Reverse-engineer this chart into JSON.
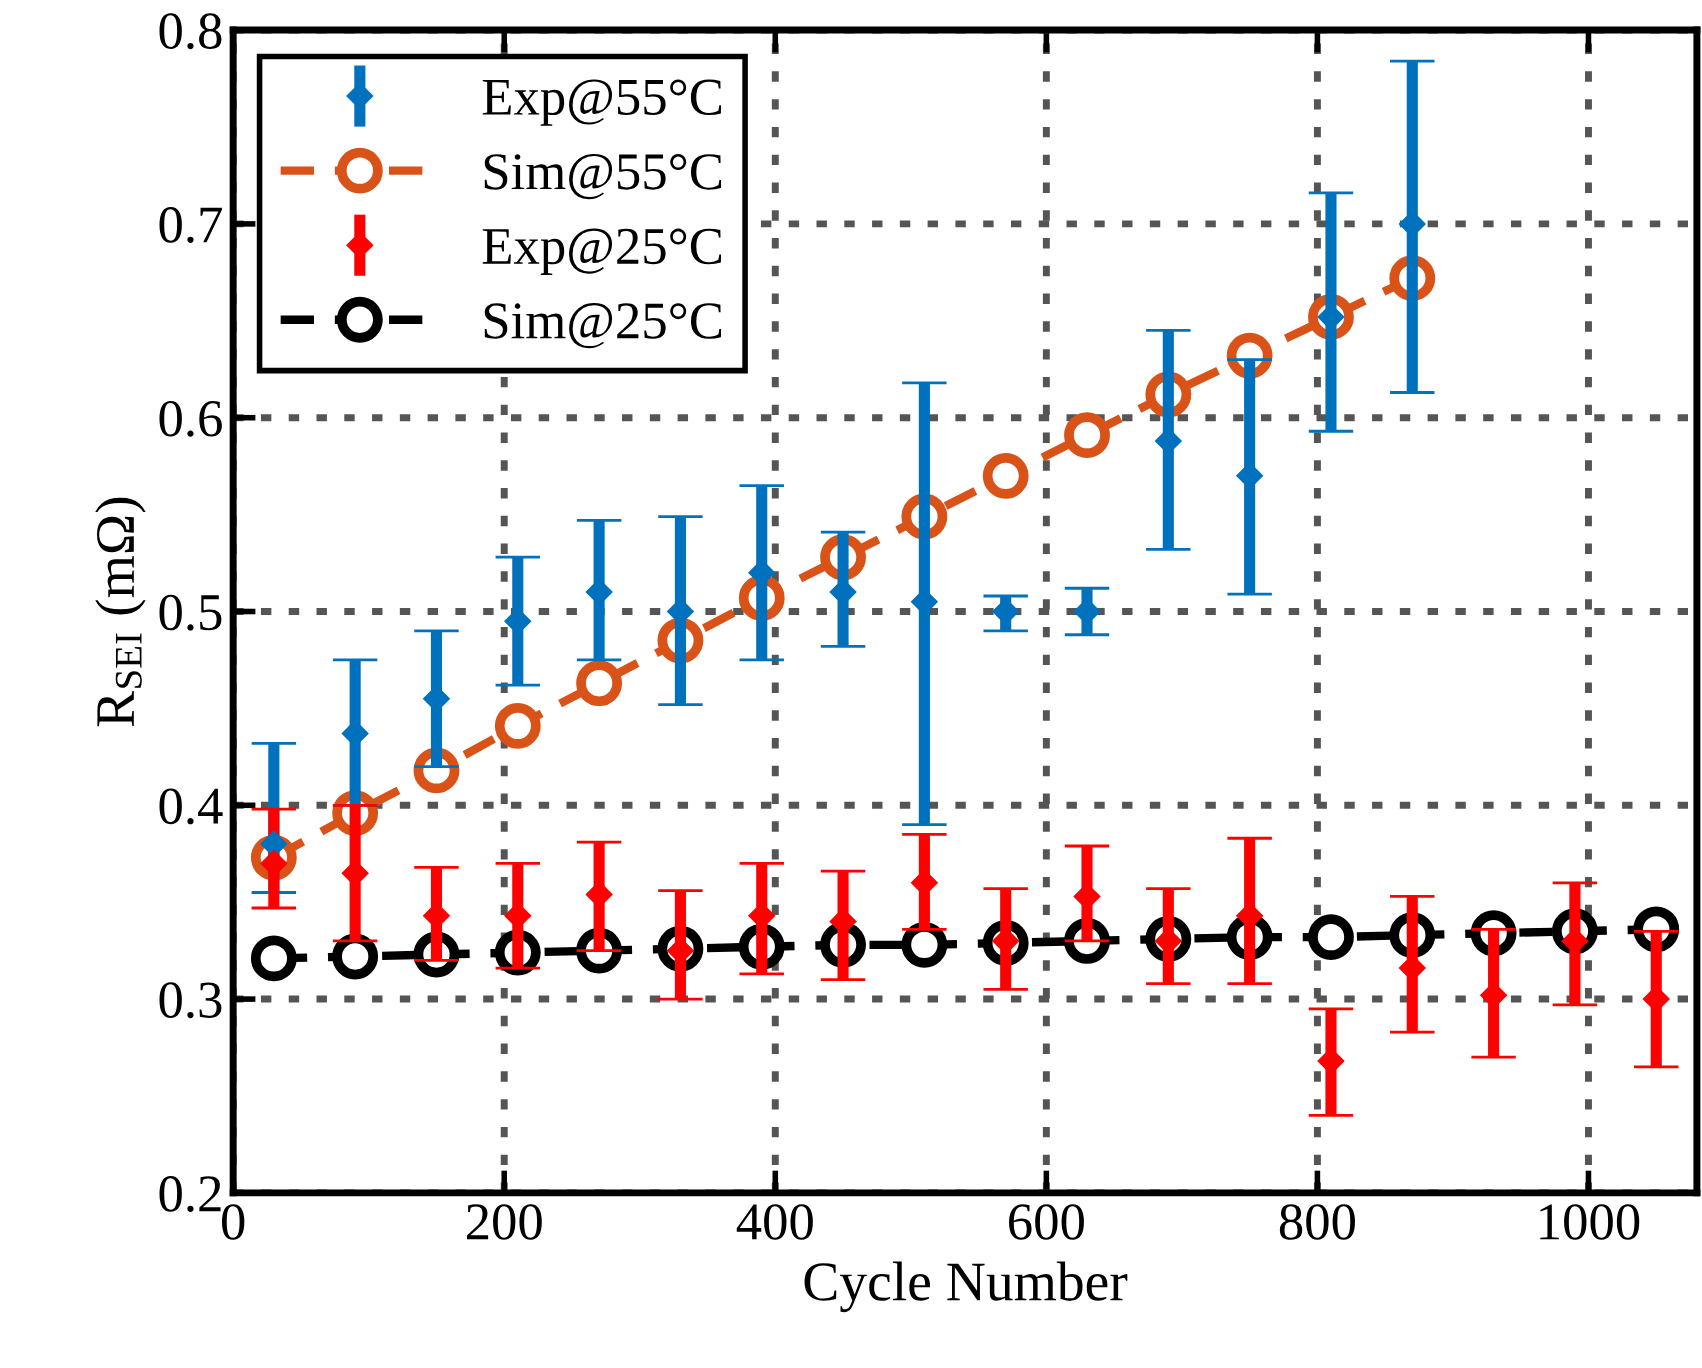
{
  "chart_data": {
    "type": "line",
    "xlabel": "Cycle Number",
    "ylabel": "R$_{SEI}$ (mΩ)",
    "xlim": [
      0,
      1080
    ],
    "xticks": [
      0,
      200,
      400,
      600,
      800,
      1000
    ],
    "ylim": [
      0.2,
      0.8
    ],
    "yticks": [
      0.2,
      0.3,
      0.4,
      0.5,
      0.6,
      0.7,
      0.8
    ],
    "grid": true,
    "legend": "top left",
    "series": [
      {
        "name": "Exp@55°C",
        "type": "scatter",
        "marker": "diamond",
        "color": "#0072bd",
        "x": [
          30,
          90,
          150,
          210,
          270,
          330,
          390,
          450,
          510,
          570,
          630,
          690,
          750,
          810,
          870
        ],
        "values": [
          0.38,
          0.437,
          0.455,
          0.495,
          0.51,
          0.5,
          0.52,
          0.51,
          0.505,
          0.5,
          0.5,
          0.588,
          0.57,
          0.652,
          0.7
        ],
        "errors": [
          [
            0.355,
            0.432
          ],
          [
            0.4,
            0.475
          ],
          [
            0.42,
            0.49
          ],
          [
            0.462,
            0.528
          ],
          [
            0.475,
            0.547
          ],
          [
            0.452,
            0.549
          ],
          [
            0.475,
            0.565
          ],
          [
            0.482,
            0.541
          ],
          [
            0.39,
            0.618
          ],
          [
            0.49,
            0.508
          ],
          [
            0.488,
            0.512
          ],
          [
            0.532,
            0.645
          ],
          [
            0.509,
            0.63
          ],
          [
            0.593,
            0.716
          ],
          [
            0.613,
            0.784
          ]
        ]
      },
      {
        "name": "Sim@55°C",
        "line_style": "dashed",
        "marker": "circle",
        "color": "#d95319",
        "x": [
          30,
          90,
          150,
          210,
          270,
          330,
          390,
          450,
          510,
          570,
          630,
          690,
          750,
          810,
          870
        ],
        "values": [
          0.373,
          0.396,
          0.418,
          0.441,
          0.463,
          0.485,
          0.507,
          0.528,
          0.549,
          0.57,
          0.591,
          0.612,
          0.632,
          0.652,
          0.672
        ]
      },
      {
        "name": "Exp@25°C",
        "type": "scatter",
        "marker": "diamond",
        "color": "#ff0000",
        "x": [
          30,
          90,
          150,
          210,
          270,
          330,
          390,
          450,
          510,
          570,
          630,
          690,
          750,
          810,
          870,
          930,
          990,
          1050
        ],
        "values": [
          0.37,
          0.365,
          0.343,
          0.343,
          0.354,
          0.325,
          0.343,
          0.34,
          0.36,
          0.33,
          0.353,
          0.33,
          0.343,
          0.268,
          0.316,
          0.302,
          0.33,
          0.3
        ],
        "errors": [
          [
            0.347,
            0.398
          ],
          [
            0.33,
            0.4
          ],
          [
            0.32,
            0.368
          ],
          [
            0.316,
            0.37
          ],
          [
            0.325,
            0.381
          ],
          [
            0.3,
            0.356
          ],
          [
            0.313,
            0.37
          ],
          [
            0.31,
            0.366
          ],
          [
            0.336,
            0.385
          ],
          [
            0.305,
            0.357
          ],
          [
            0.33,
            0.379
          ],
          [
            0.308,
            0.357
          ],
          [
            0.308,
            0.383
          ],
          [
            0.24,
            0.295
          ],
          [
            0.283,
            0.353
          ],
          [
            0.27,
            0.336
          ],
          [
            0.297,
            0.36
          ],
          [
            0.265,
            0.335
          ]
        ]
      },
      {
        "name": "Sim@25°C",
        "line_style": "dashed",
        "marker": "circle",
        "color": "#000000",
        "x": [
          30,
          90,
          150,
          210,
          270,
          330,
          390,
          450,
          510,
          570,
          630,
          690,
          750,
          810,
          870,
          930,
          990,
          1050
        ],
        "values": [
          0.321,
          0.322,
          0.323,
          0.324,
          0.325,
          0.326,
          0.327,
          0.328,
          0.328,
          0.329,
          0.33,
          0.331,
          0.332,
          0.332,
          0.333,
          0.334,
          0.335,
          0.336
        ]
      }
    ]
  }
}
